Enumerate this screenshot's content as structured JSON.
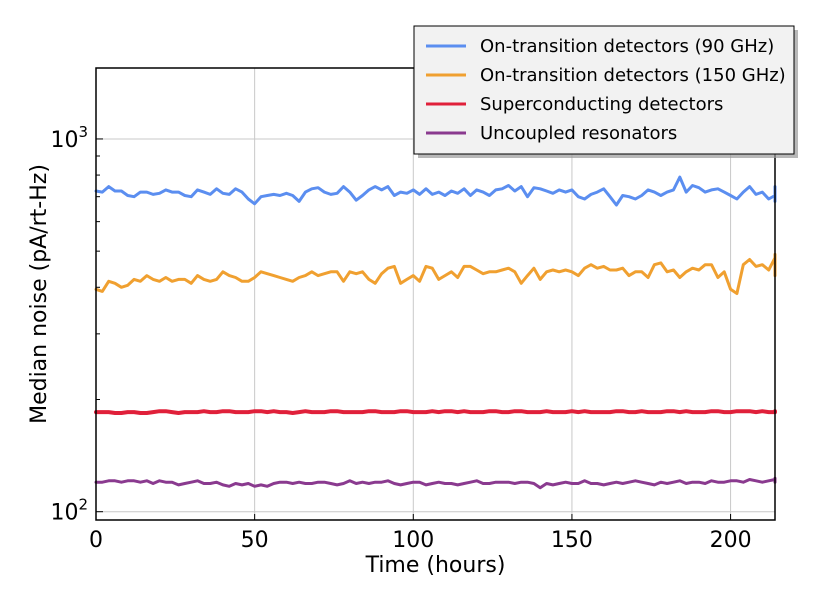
{
  "chart_data": {
    "type": "line",
    "xlabel": "Time (hours)",
    "ylabel": "Median noise (pA/rt-Hz)",
    "xlim": [
      0,
      214
    ],
    "ylim": [
      95,
      1550
    ],
    "yscale": "log",
    "grid": true,
    "legend_position": "top-right",
    "x_ticks": [
      0,
      50,
      100,
      150,
      200
    ],
    "y_ticks": [
      {
        "value": 100,
        "base": "10",
        "exp": "2"
      },
      {
        "value": 1000,
        "base": "10",
        "exp": "3"
      }
    ],
    "x_step": 2,
    "series": [
      {
        "name": "On-transition detectors (90 GHz)",
        "color": "#5b8ef0",
        "values": [
          725,
          720,
          745,
          725,
          725,
          705,
          700,
          720,
          720,
          710,
          715,
          730,
          720,
          720,
          705,
          700,
          730,
          720,
          710,
          735,
          715,
          710,
          735,
          720,
          690,
          670,
          700,
          705,
          710,
          705,
          715,
          705,
          680,
          720,
          735,
          740,
          720,
          710,
          715,
          745,
          720,
          685,
          705,
          730,
          745,
          730,
          745,
          705,
          720,
          715,
          730,
          710,
          735,
          710,
          720,
          705,
          725,
          715,
          735,
          705,
          730,
          720,
          705,
          730,
          735,
          750,
          725,
          745,
          700,
          740,
          735,
          725,
          715,
          730,
          720,
          730,
          700,
          690,
          710,
          720,
          735,
          700,
          665,
          705,
          700,
          690,
          705,
          730,
          720,
          705,
          720,
          730,
          790,
          720,
          750,
          740,
          720,
          730,
          735,
          720,
          705,
          690,
          720,
          745,
          710,
          720,
          690,
          705,
          705,
          735,
          705,
          690,
          715,
          730,
          700,
          725,
          745,
          715,
          710,
          690,
          725,
          680,
          715,
          740,
          695,
          735,
          680,
          725
        ]
      },
      {
        "name": "On-transition detectors (150 GHz)",
        "color": "#f0a030",
        "values": [
          395,
          390,
          415,
          410,
          400,
          405,
          420,
          415,
          430,
          420,
          415,
          425,
          415,
          420,
          420,
          410,
          430,
          420,
          415,
          420,
          440,
          430,
          425,
          415,
          415,
          425,
          440,
          435,
          430,
          425,
          420,
          415,
          425,
          430,
          440,
          430,
          435,
          440,
          440,
          415,
          440,
          435,
          440,
          420,
          410,
          435,
          450,
          455,
          410,
          420,
          430,
          415,
          455,
          450,
          420,
          430,
          440,
          425,
          455,
          455,
          445,
          435,
          440,
          440,
          445,
          450,
          440,
          410,
          430,
          450,
          420,
          440,
          445,
          440,
          445,
          440,
          430,
          450,
          460,
          450,
          455,
          445,
          445,
          450,
          430,
          440,
          440,
          425,
          460,
          465,
          440,
          445,
          425,
          440,
          450,
          445,
          460,
          460,
          425,
          440,
          395,
          385,
          460,
          475,
          455,
          460,
          445,
          480,
          440,
          490,
          450,
          460,
          440,
          490,
          430,
          450,
          440,
          470,
          455,
          475,
          490,
          445,
          470,
          490,
          460,
          470,
          435,
          450
        ]
      },
      {
        "name": "Superconducting detectors",
        "color": "#e0203a",
        "values": [
          185,
          185,
          185,
          184,
          184,
          185,
          185,
          184,
          184,
          185,
          186,
          186,
          185,
          184,
          185,
          185,
          185,
          186,
          185,
          185,
          186,
          186,
          185,
          185,
          185,
          186,
          186,
          185,
          186,
          185,
          185,
          184,
          185,
          186,
          185,
          185,
          185,
          186,
          186,
          185,
          185,
          185,
          185,
          186,
          186,
          185,
          185,
          185,
          186,
          186,
          185,
          185,
          185,
          186,
          185,
          186,
          186,
          185,
          186,
          185,
          185,
          185,
          186,
          186,
          185,
          185,
          186,
          186,
          185,
          185,
          185,
          186,
          185,
          185,
          185,
          186,
          185,
          186,
          185,
          185,
          185,
          185,
          186,
          186,
          185,
          185,
          186,
          185,
          185,
          185,
          186,
          186,
          185,
          186,
          185,
          185,
          185,
          186,
          186,
          185,
          185,
          186,
          186,
          186,
          185,
          186,
          185,
          185,
          186,
          186,
          185,
          185,
          185,
          186,
          186,
          185,
          186,
          186,
          185,
          185,
          186,
          186,
          186,
          186,
          185,
          186,
          186,
          186
        ]
      },
      {
        "name": "Uncoupled resonators",
        "color": "#8a3a8f",
        "values": [
          120,
          120,
          121,
          121,
          120,
          121,
          121,
          120,
          121,
          119,
          121,
          120,
          120,
          118,
          119,
          120,
          121,
          119,
          119,
          120,
          118,
          117,
          119,
          118,
          119,
          117,
          118,
          117,
          119,
          120,
          120,
          119,
          120,
          119,
          119,
          120,
          120,
          119,
          118,
          119,
          121,
          119,
          120,
          119,
          120,
          120,
          121,
          119,
          118,
          119,
          120,
          120,
          118,
          119,
          120,
          119,
          119,
          118,
          119,
          120,
          121,
          119,
          119,
          120,
          120,
          120,
          119,
          120,
          120,
          119,
          116,
          119,
          118,
          119,
          120,
          119,
          119,
          121,
          119,
          119,
          118,
          119,
          120,
          119,
          120,
          121,
          120,
          119,
          118,
          120,
          119,
          120,
          121,
          119,
          120,
          120,
          119,
          121,
          120,
          120,
          121,
          121,
          120,
          122,
          121,
          120,
          121,
          122,
          120,
          121,
          120,
          121,
          122,
          121,
          121,
          122,
          120,
          121,
          121,
          122,
          120,
          122,
          121,
          122,
          121,
          123,
          122,
          121
        ]
      }
    ]
  }
}
